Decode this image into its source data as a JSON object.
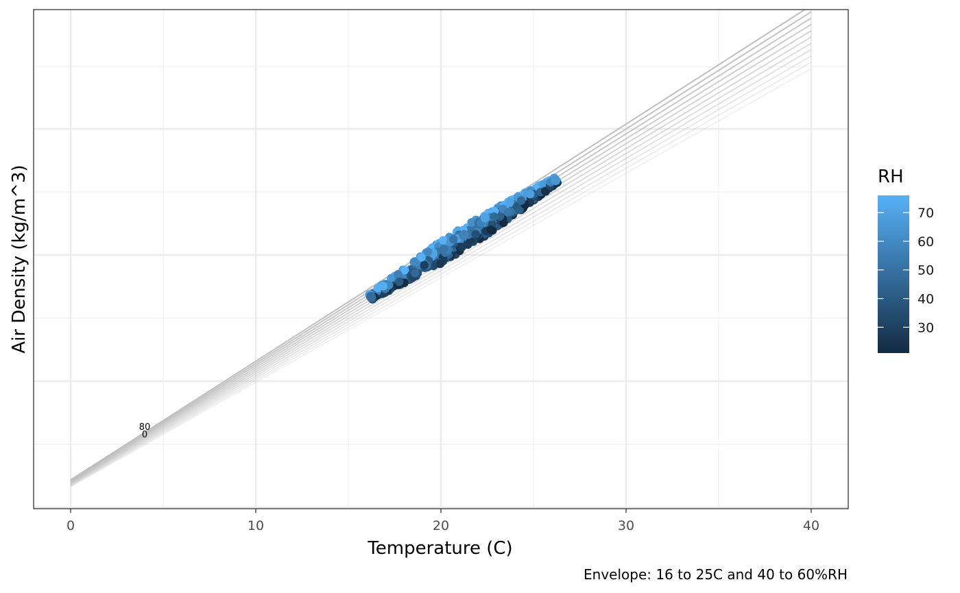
{
  "chart_data": {
    "type": "scatter",
    "xlabel": "Temperature (C)",
    "ylabel": "Air Density (kg/m^3)",
    "caption": "Envelope: 16 to 25C and 40 to 60%RH",
    "xlim": [
      -2,
      42
    ],
    "x_ticks": [
      "0",
      "10",
      "20",
      "30",
      "40"
    ],
    "x_tick_values": [
      0,
      10,
      20,
      30,
      40
    ],
    "y_ticks_labels_shown": false,
    "grid": true,
    "theme": "bw",
    "legend": {
      "title": "RH",
      "position": "right",
      "type": "colorbar",
      "range": [
        21,
        76
      ],
      "ticks": [
        "30",
        "40",
        "50",
        "60",
        "70"
      ],
      "tick_values": [
        30,
        40,
        50,
        60,
        70
      ],
      "low_color": "#132b43",
      "high_color": "#56b1f7"
    },
    "reference_lines": {
      "count": 11,
      "x_range": [
        0,
        40
      ],
      "color": "#bebebe",
      "labels": [
        "80",
        "0"
      ],
      "label_x": 4
    },
    "envelope_color": "#7b68ee",
    "points": {
      "x_range": [
        16,
        26.2
      ],
      "rh_range": [
        21,
        76
      ]
    }
  }
}
